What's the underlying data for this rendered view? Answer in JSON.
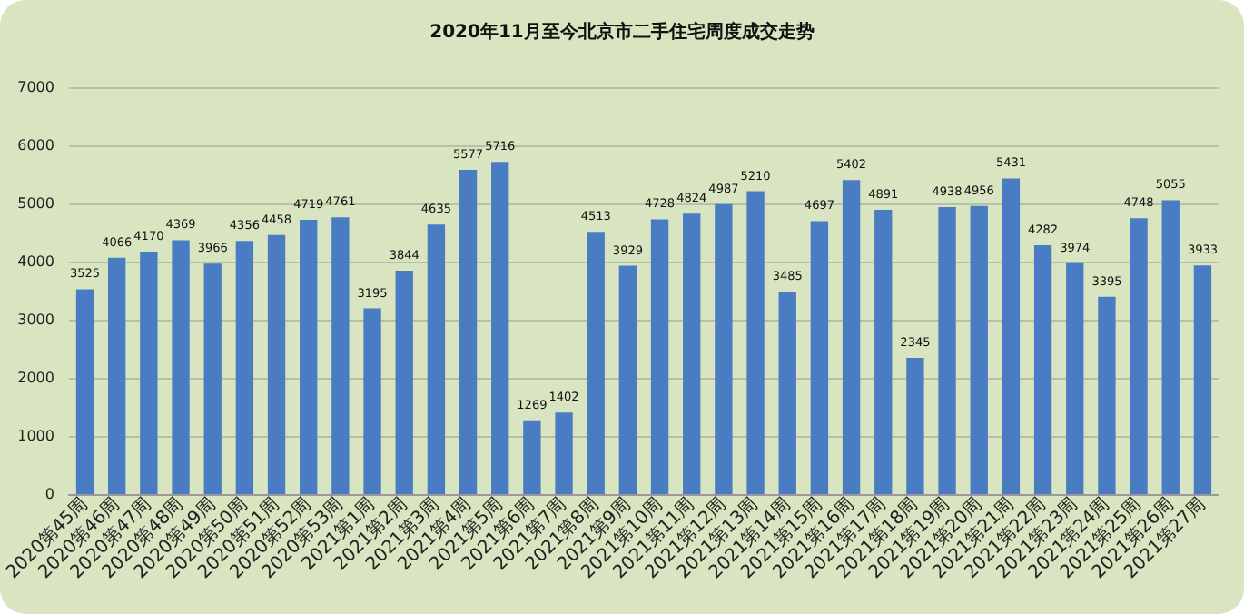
{
  "chart_data": {
    "type": "bar",
    "title": "2020年11月至今北京市二手住宅周度成交走势",
    "categories": [
      "2020第45周",
      "2020第46周",
      "2020第47周",
      "2020第48周",
      "2020第49周",
      "2020第50周",
      "2020第51周",
      "2020第52周",
      "2020第53周",
      "2021第1周",
      "2021第2周",
      "2021第3周",
      "2021第4周",
      "2021第5周",
      "2021第6周",
      "2021第7周",
      "2021第8周",
      "2021第9周",
      "2021第10周",
      "2021第11周",
      "2021第12周",
      "2021第13周",
      "2021第14周",
      "2021第15周",
      "2021第16周",
      "2021第17周",
      "2021第18周",
      "2021第19周",
      "2021第20周",
      "2021第21周",
      "2021第22周",
      "2021第23周",
      "2021第24周",
      "2021第25周",
      "2021第26周",
      "2021第27周"
    ],
    "values": [
      3525,
      4066,
      4170,
      4369,
      3966,
      4356,
      4458,
      4719,
      4761,
      3195,
      3844,
      4635,
      5577,
      5716,
      1269,
      1402,
      4513,
      3929,
      4728,
      4824,
      4987,
      5210,
      3485,
      4697,
      5402,
      4891,
      2345,
      4938,
      4956,
      5431,
      4282,
      3974,
      3395,
      4748,
      5055,
      3933
    ],
    "color": "#4a7cc4",
    "ylim": [
      0,
      7000
    ],
    "yticks": [
      0,
      1000,
      2000,
      3000,
      4000,
      5000,
      6000,
      7000
    ],
    "grid": "y",
    "data_labels": true
  }
}
